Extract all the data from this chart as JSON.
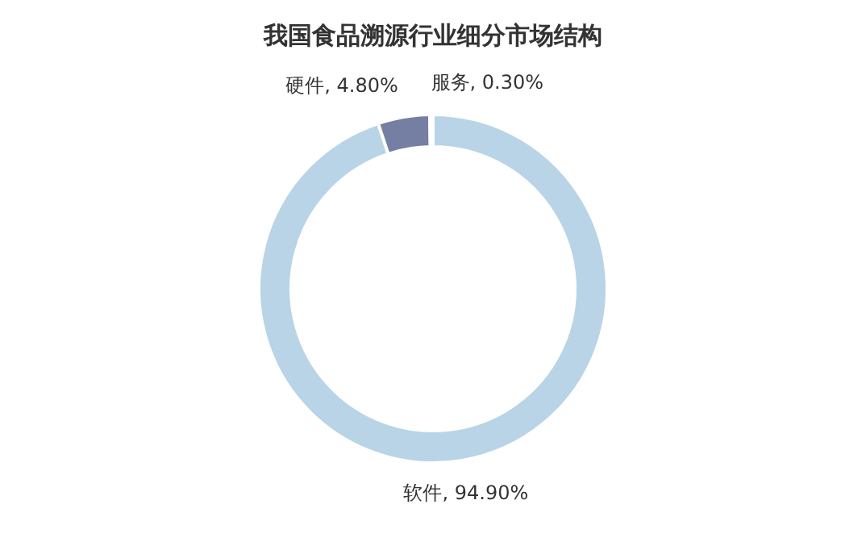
{
  "chart_data": {
    "type": "donut",
    "title": "我国食品溯源行业细分市场结构",
    "categories": [
      "软件",
      "硬件",
      "服务"
    ],
    "values": [
      94.9,
      4.8,
      0.3
    ],
    "colors": [
      "#b8d4e6",
      "#757ea3",
      "#a9bfd6"
    ],
    "value_labels": [
      "94.90%",
      "4.80%",
      "0.30%"
    ],
    "legend": false
  }
}
